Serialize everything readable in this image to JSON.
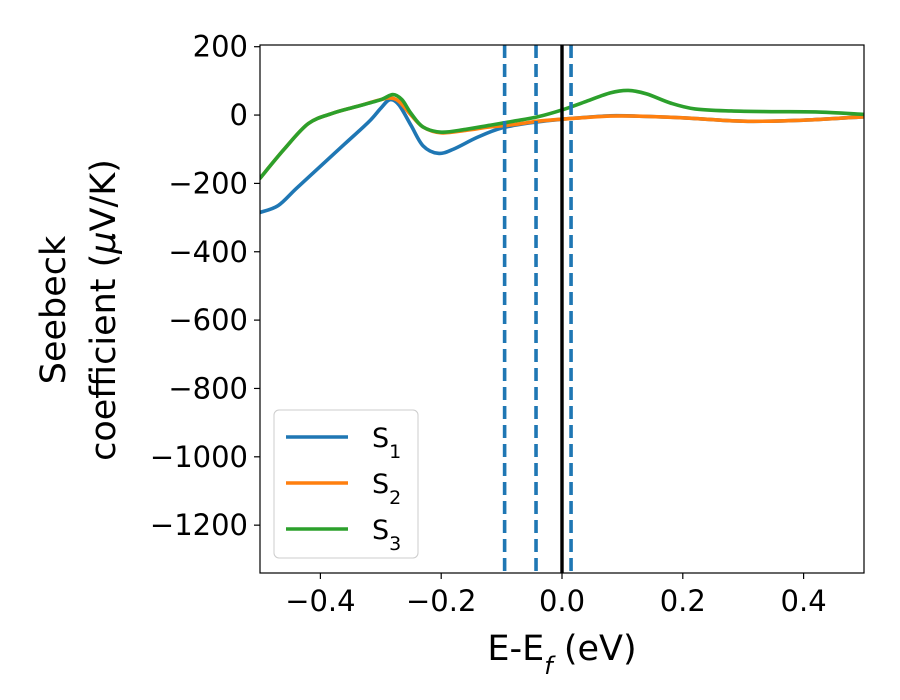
{
  "chart_data": {
    "type": "line",
    "xlabel": {
      "main": "E-E",
      "sub": "f",
      "tail": " (eV)"
    },
    "ylabel": {
      "line1": "Seebeck",
      "line2_pre": "coefficient  (",
      "mu": "μ",
      "line2_post": "V/K)"
    },
    "xlim": [
      -0.5,
      0.5
    ],
    "ylim": [
      -1340,
      205
    ],
    "xticks": [
      -0.4,
      -0.2,
      0.0,
      0.2,
      0.4
    ],
    "xtick_labels": [
      "−0.4",
      "−0.2",
      "0.0",
      "0.2",
      "0.4"
    ],
    "yticks": [
      200,
      0,
      -200,
      -400,
      -600,
      -800,
      -1000,
      -1200
    ],
    "ytick_labels": [
      "200",
      "0",
      "−200",
      "−400",
      "−600",
      "−800",
      "−1000",
      "−1200"
    ],
    "grid": false,
    "legend_position": "lower-left",
    "series": [
      {
        "name": "S",
        "sub": "1",
        "color": "#1f77b4",
        "points": [
          [
            -0.5,
            -285
          ],
          [
            -0.47,
            -265
          ],
          [
            -0.44,
            -215
          ],
          [
            -0.4,
            -150
          ],
          [
            -0.36,
            -85
          ],
          [
            -0.32,
            -20
          ],
          [
            -0.3,
            20
          ],
          [
            -0.285,
            45
          ],
          [
            -0.27,
            30
          ],
          [
            -0.25,
            -30
          ],
          [
            -0.23,
            -90
          ],
          [
            -0.205,
            -112
          ],
          [
            -0.18,
            -100
          ],
          [
            -0.14,
            -65
          ],
          [
            -0.1,
            -38
          ],
          [
            -0.05,
            -22
          ],
          [
            0.0,
            -12
          ],
          [
            0.03,
            -8
          ],
          [
            0.08,
            -2
          ],
          [
            0.12,
            -3
          ],
          [
            0.2,
            -8
          ],
          [
            0.3,
            -18
          ],
          [
            0.4,
            -15
          ],
          [
            0.5,
            -5
          ]
        ]
      },
      {
        "name": "S",
        "sub": "2",
        "color": "#ff7f0e",
        "points": [
          [
            -0.5,
            -185
          ],
          [
            -0.46,
            -100
          ],
          [
            -0.42,
            -25
          ],
          [
            -0.38,
            5
          ],
          [
            -0.34,
            25
          ],
          [
            -0.3,
            45
          ],
          [
            -0.285,
            50
          ],
          [
            -0.27,
            40
          ],
          [
            -0.25,
            0
          ],
          [
            -0.23,
            -35
          ],
          [
            -0.2,
            -52
          ],
          [
            -0.16,
            -45
          ],
          [
            -0.12,
            -35
          ],
          [
            -0.08,
            -28
          ],
          [
            -0.04,
            -18
          ],
          [
            0.0,
            -12
          ],
          [
            0.04,
            -7
          ],
          [
            0.08,
            -3
          ],
          [
            0.12,
            -3
          ],
          [
            0.2,
            -8
          ],
          [
            0.3,
            -18
          ],
          [
            0.4,
            -15
          ],
          [
            0.5,
            -5
          ]
        ]
      },
      {
        "name": "S",
        "sub": "3",
        "color": "#2ca02c",
        "points": [
          [
            -0.5,
            -185
          ],
          [
            -0.46,
            -100
          ],
          [
            -0.42,
            -25
          ],
          [
            -0.38,
            5
          ],
          [
            -0.34,
            25
          ],
          [
            -0.3,
            45
          ],
          [
            -0.28,
            60
          ],
          [
            -0.265,
            45
          ],
          [
            -0.25,
            5
          ],
          [
            -0.23,
            -35
          ],
          [
            -0.2,
            -50
          ],
          [
            -0.16,
            -42
          ],
          [
            -0.12,
            -30
          ],
          [
            -0.08,
            -18
          ],
          [
            -0.04,
            -5
          ],
          [
            0.0,
            15
          ],
          [
            0.04,
            40
          ],
          [
            0.08,
            65
          ],
          [
            0.11,
            72
          ],
          [
            0.14,
            62
          ],
          [
            0.18,
            35
          ],
          [
            0.22,
            18
          ],
          [
            0.28,
            12
          ],
          [
            0.35,
            10
          ],
          [
            0.42,
            9
          ],
          [
            0.5,
            2
          ]
        ]
      }
    ],
    "vlines": [
      {
        "x": -0.095,
        "style": "dashed",
        "color": "#1f77b4"
      },
      {
        "x": -0.043,
        "style": "dashed",
        "color": "#1f77b4"
      },
      {
        "x": 0.015,
        "style": "dashed",
        "color": "#1f77b4"
      },
      {
        "x": 0.0,
        "style": "solid",
        "color": "#000000"
      }
    ]
  }
}
